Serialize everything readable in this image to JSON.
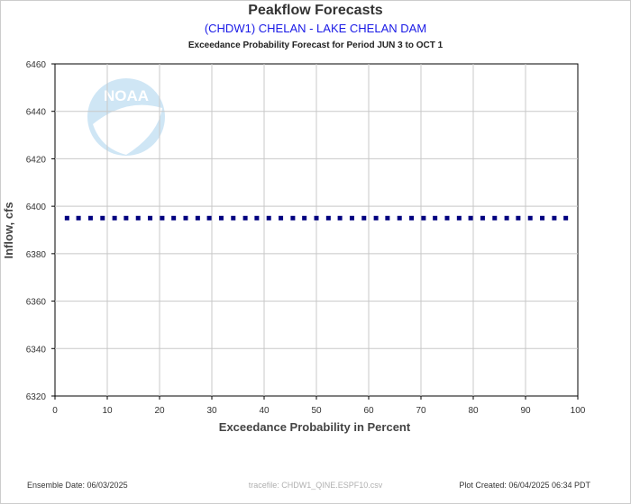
{
  "header": {
    "title": "Peakflow Forecasts",
    "subtitle": "(CHDW1) CHELAN - LAKE CHELAN DAM",
    "caption": "Exceedance Probability Forecast for Period JUN 3 to OCT 1"
  },
  "footer": {
    "ensemble_date": "Ensemble Date: 06/03/2025",
    "tracefile": "tracefile: CHDW1_QINE.ESPF10.csv",
    "plot_created": "Plot Created: 06/04/2025 06:34 PDT"
  },
  "logo": {
    "text": "NOAA",
    "icon": "noaa-logo-icon"
  },
  "colors": {
    "series": "#000080",
    "grid": "#c8c8c8",
    "subtitle": "#1a1ae6"
  },
  "chart_data": {
    "type": "scatter",
    "title": "Peakflow Forecasts",
    "xlabel": "Exceedance Probability in Percent",
    "ylabel": "Inflow, cfs",
    "xlim": [
      0,
      100
    ],
    "ylim": [
      6320,
      6460
    ],
    "x_ticks": [
      0,
      10,
      20,
      30,
      40,
      50,
      60,
      70,
      80,
      90,
      100
    ],
    "y_ticks": [
      6320,
      6340,
      6360,
      6380,
      6400,
      6420,
      6440,
      6460
    ],
    "grid": true,
    "x": [
      2.3,
      4.5,
      6.8,
      9.1,
      11.4,
      13.6,
      15.9,
      18.2,
      20.5,
      22.7,
      25.0,
      27.3,
      29.5,
      31.8,
      34.1,
      36.4,
      38.6,
      40.9,
      43.2,
      45.5,
      47.7,
      50.0,
      52.3,
      54.5,
      56.8,
      59.1,
      61.4,
      63.6,
      65.9,
      68.2,
      70.5,
      72.7,
      75.0,
      77.3,
      79.5,
      81.8,
      84.1,
      86.4,
      88.6,
      90.9,
      93.2,
      95.5,
      97.7
    ],
    "y_value": 6395
  }
}
